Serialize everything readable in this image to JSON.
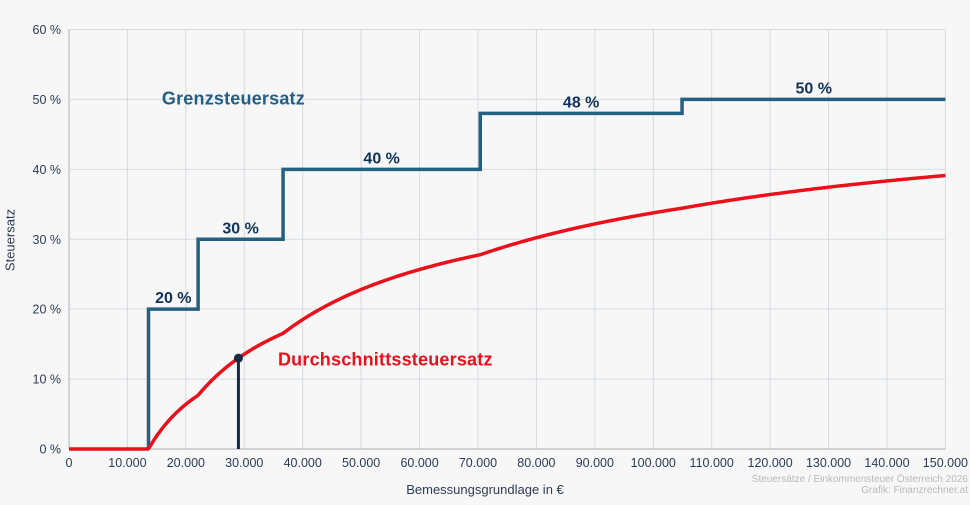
{
  "page": {
    "background": "#f7f7f8"
  },
  "colors": {
    "grid": "#d9dadc",
    "axis": "#c5c6c9",
    "step_line": "#24607f",
    "step_label": "#0f3358",
    "average_line": "#e8111c",
    "marker": "#132c44",
    "tick_text": "#2c3c52",
    "grenz_title": "#235e85",
    "durchschnitt_title": "#e8111c",
    "attribution_text": "#b8b9bd"
  },
  "chart_data": {
    "type": "line",
    "title": "Steuersätze / Einkommensteuer Österreich 2026",
    "xlabel": "Bemessungsgrundlage in €",
    "ylabel": "Steuersatz",
    "xlim": [
      0,
      150000
    ],
    "ylim": [
      0,
      60
    ],
    "grid": true,
    "x_ticks": [
      0,
      10000,
      20000,
      30000,
      40000,
      50000,
      60000,
      70000,
      80000,
      90000,
      100000,
      110000,
      120000,
      130000,
      140000,
      150000
    ],
    "x_tick_labels": [
      "0",
      "10.000",
      "20.000",
      "30.000",
      "40.000",
      "50.000",
      "60.000",
      "70.000",
      "80.000",
      "90.000",
      "100.000",
      "110.000",
      "120.000",
      "130.000",
      "140.000",
      "150.000"
    ],
    "y_ticks": [
      0,
      10,
      20,
      30,
      40,
      50,
      60
    ],
    "y_tick_labels": [
      "0 %",
      "10 %",
      "20 %",
      "30 %",
      "40 %",
      "50 %",
      "60 %"
    ],
    "series": [
      {
        "name": "Grenzsteuersatz",
        "type": "step",
        "brackets": [
          {
            "from": 0,
            "to": 13608,
            "rate": 0,
            "label": null
          },
          {
            "from": 13608,
            "to": 22098,
            "rate": 20,
            "label": "20 %"
          },
          {
            "from": 22098,
            "to": 36638,
            "rate": 30,
            "label": "30 %"
          },
          {
            "from": 36638,
            "to": 70392,
            "rate": 40,
            "label": "40 %"
          },
          {
            "from": 70392,
            "to": 104925,
            "rate": 48,
            "label": "48 %"
          },
          {
            "from": 104925,
            "to": 150000,
            "rate": 50,
            "label": "50 %"
          }
        ]
      },
      {
        "name": "Durchschnittssteuersatz",
        "type": "line",
        "derivation": "average rate in % = cumulative tax from Grenzsteuersatz brackets / Bemessungsgrundlage",
        "sample_points": [
          {
            "x": 13608,
            "y": 0
          },
          {
            "x": 20000,
            "y": 6.4
          },
          {
            "x": 29000,
            "y": 13.0
          },
          {
            "x": 50000,
            "y": 22.8
          },
          {
            "x": 75000,
            "y": 29.0
          },
          {
            "x": 100000,
            "y": 33.8
          },
          {
            "x": 125000,
            "y": 36.9
          },
          {
            "x": 150000,
            "y": 39.1
          }
        ]
      }
    ],
    "marker": {
      "x": 29000,
      "y_percent": 13.0
    }
  },
  "annotations": {
    "grenzsteuersatz": {
      "text": "Grenzsteuersatz",
      "x_value": 15900,
      "y_percent": 50.1
    },
    "durchschnittssteuersatz": {
      "text": "Durchschnittssteuersatz",
      "x_value": 35770,
      "y_percent": 12.8
    }
  },
  "footer": {
    "line1": "Steuersätze / Einkommensteuer Österreich 2026",
    "line2": "Grafik: Finanzrechner.at"
  }
}
